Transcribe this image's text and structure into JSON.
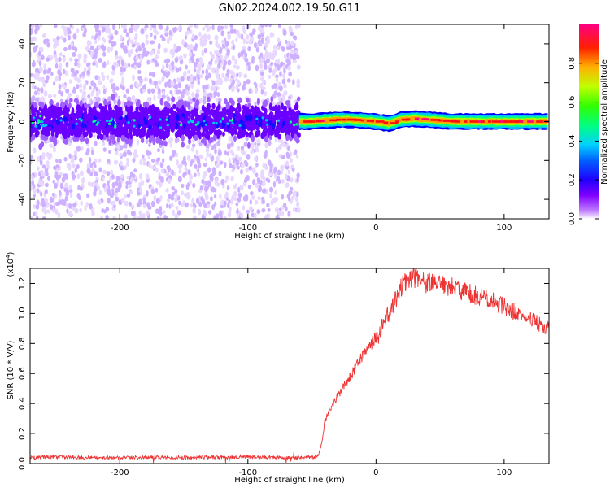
{
  "title": "GN02.2024.002.19.50.G11",
  "chart_data": [
    {
      "type": "heatmap",
      "xlabel": "Height of straight line (km)",
      "ylabel": "Frequency (Hz)",
      "xlim": [
        -270,
        135
      ],
      "ylim": [
        -50,
        50
      ],
      "xticks": [
        -200,
        -100,
        0,
        100
      ],
      "yticks": [
        -40,
        -20,
        0,
        20,
        40
      ],
      "noise_region_x": [
        -270,
        -60
      ],
      "signal_region_x": [
        -60,
        135
      ],
      "signal_track": {
        "x": [
          -60,
          -50,
          -40,
          -30,
          -20,
          -10,
          0,
          10,
          20,
          30,
          40,
          50,
          60,
          70,
          80,
          90,
          100,
          110,
          120,
          135
        ],
        "y": [
          0,
          0,
          0.5,
          1,
          1,
          0.5,
          0,
          -1,
          1,
          1.5,
          1,
          0.5,
          0,
          0,
          0,
          0,
          0,
          0,
          0,
          0
        ]
      },
      "colorbar": {
        "label": "Normalized spectral amplitude",
        "ticks": [
          0.0,
          0.2,
          0.4,
          0.6,
          0.8
        ],
        "range": [
          0,
          1
        ],
        "colors": [
          "#ffffff",
          "#8000ff",
          "#0000ff",
          "#00c0ff",
          "#00ff80",
          "#40ff00",
          "#c0ff00",
          "#ffa000",
          "#ff0000",
          "#ff0080"
        ]
      }
    },
    {
      "type": "line",
      "xlabel": "Height of straight line (km)",
      "ylabel": "SNR (10 * V/V)",
      "multiplier": "(x10",
      "multiplier_exp": "4",
      "multiplier_close": ")",
      "xlim": [
        -270,
        135
      ],
      "ylim": [
        0,
        1.3
      ],
      "xticks": [
        -200,
        -100,
        0,
        100
      ],
      "yticks": [
        0.0,
        0.2,
        0.4,
        0.6,
        0.8,
        1.0,
        1.2
      ],
      "series": [
        {
          "color": "#ee3333",
          "x": [
            -270,
            -250,
            -220,
            -180,
            -140,
            -100,
            -70,
            -50,
            -45,
            -42,
            -40,
            -35,
            -30,
            -25,
            -20,
            -15,
            -10,
            -5,
            0,
            5,
            10,
            15,
            20,
            25,
            30,
            40,
            50,
            60,
            70,
            80,
            90,
            100,
            110,
            120,
            130,
            135
          ],
          "y": [
            0.04,
            0.045,
            0.04,
            0.042,
            0.04,
            0.045,
            0.04,
            0.04,
            0.05,
            0.15,
            0.28,
            0.38,
            0.45,
            0.52,
            0.58,
            0.65,
            0.72,
            0.78,
            0.84,
            0.92,
            1.0,
            1.08,
            1.18,
            1.22,
            1.24,
            1.2,
            1.19,
            1.17,
            1.14,
            1.12,
            1.08,
            1.05,
            1.0,
            0.97,
            0.92,
            0.9
          ]
        }
      ]
    }
  ]
}
